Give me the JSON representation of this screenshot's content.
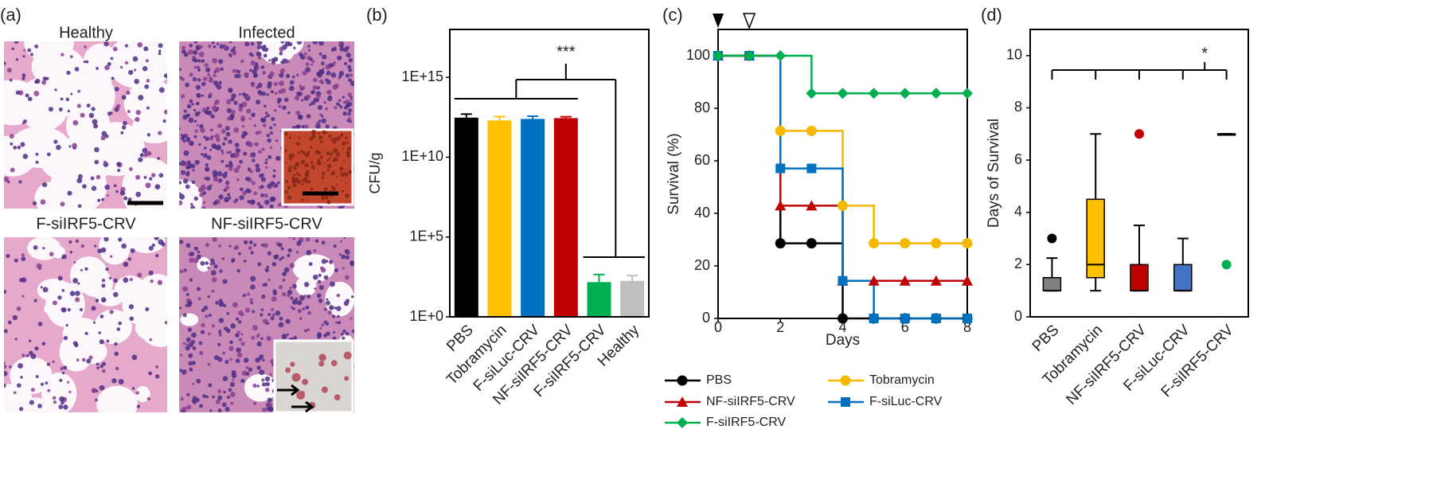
{
  "figure_a": {
    "label": "(a)",
    "titles": [
      "Healthy",
      "Infected",
      "F-siIRF5-CRV",
      "NF-siIRF5-CRV"
    ]
  },
  "chart_data": [
    {
      "type": "bar",
      "label": "(b)",
      "y_label": "CFU/g",
      "log_scale": true,
      "categories": [
        "PBS",
        "Tobramycin",
        "F-siLuc-CRV",
        "NF-siIRF5-CRV",
        "F-siIRF5-CRV",
        "Healthy"
      ],
      "values": [
        3000000000000.0,
        2000000000000.0,
        2500000000000.0,
        2800000000000.0,
        150,
        180
      ],
      "errors": [
        2000000000000.0,
        1500000000000.0,
        1200000000000.0,
        600000000000.0,
        300,
        200
      ],
      "colors": [
        "#000000",
        "#ffc000",
        "#0070c0",
        "#c00000",
        "#00b050",
        "#bfbfbf"
      ],
      "ylim": [
        1,
        1e+18
      ],
      "yticks": [
        {
          "value": 1,
          "label": "1E+0"
        },
        {
          "value": 100000,
          "label": "1E+5"
        },
        {
          "value": 10000000000,
          "label": "1E+10"
        },
        {
          "value": 1000000000000000.0,
          "label": "1E+15"
        }
      ],
      "annotation": "***"
    },
    {
      "type": "line",
      "label": "(c)",
      "x_label": "Days",
      "y_label": "Survival (%)",
      "step": true,
      "x": [
        0,
        1,
        2,
        3,
        4,
        5,
        6,
        7,
        8
      ],
      "series": [
        {
          "name": "PBS",
          "color": "#000000",
          "marker": "circle",
          "values": [
            100,
            100,
            28.6,
            28.6,
            0,
            0,
            0,
            0,
            0
          ]
        },
        {
          "name": "Tobramycin",
          "color": "#f5b800",
          "marker": "circle",
          "values": [
            100,
            100,
            71.4,
            71.4,
            42.9,
            28.6,
            28.6,
            28.6,
            28.6
          ]
        },
        {
          "name": "NF-siIRF5-CRV",
          "color": "#c00000",
          "marker": "triangle",
          "values": [
            100,
            100,
            42.9,
            42.9,
            14.3,
            14.3,
            14.3,
            14.3,
            14.3
          ]
        },
        {
          "name": "F-siLuc-CRV",
          "color": "#0070c0",
          "marker": "square",
          "values": [
            100,
            100,
            57.1,
            57.1,
            14.3,
            0,
            0,
            0,
            0
          ]
        },
        {
          "name": "F-siIRF5-CRV",
          "color": "#00b050",
          "marker": "diamond",
          "values": [
            100,
            100,
            100,
            85.7,
            85.7,
            85.7,
            85.7,
            85.7,
            85.7
          ]
        }
      ],
      "xlim": [
        0,
        8
      ],
      "xticks": [
        0,
        2,
        4,
        6,
        8
      ],
      "ylim": [
        0,
        110
      ],
      "yticks": [
        0,
        20,
        40,
        60,
        80,
        100
      ]
    },
    {
      "type": "box",
      "label": "(d)",
      "y_label": "Days of Survival",
      "categories": [
        "PBS",
        "Tobramycin",
        "NF-siIRF5-CRV",
        "F-siLuc-CRV",
        "F-siIRF5-CRV"
      ],
      "colors": [
        "#808080",
        "#ffc000",
        "#c00000",
        "#4472c4",
        "#00b050"
      ],
      "min": [
        1,
        1,
        1,
        1,
        7
      ],
      "q1": [
        1,
        1.5,
        1,
        1,
        7
      ],
      "median": [
        1,
        2,
        1,
        1,
        7
      ],
      "q3": [
        1.5,
        4.5,
        2,
        2,
        7
      ],
      "max": [
        2.25,
        7,
        3.5,
        3,
        7
      ],
      "outliers": [
        [
          3
        ],
        [],
        [
          7
        ],
        [],
        [
          2
        ]
      ],
      "ylim": [
        0,
        11
      ],
      "yticks": [
        0,
        2,
        4,
        6,
        8,
        10
      ],
      "annotation": "*"
    }
  ]
}
